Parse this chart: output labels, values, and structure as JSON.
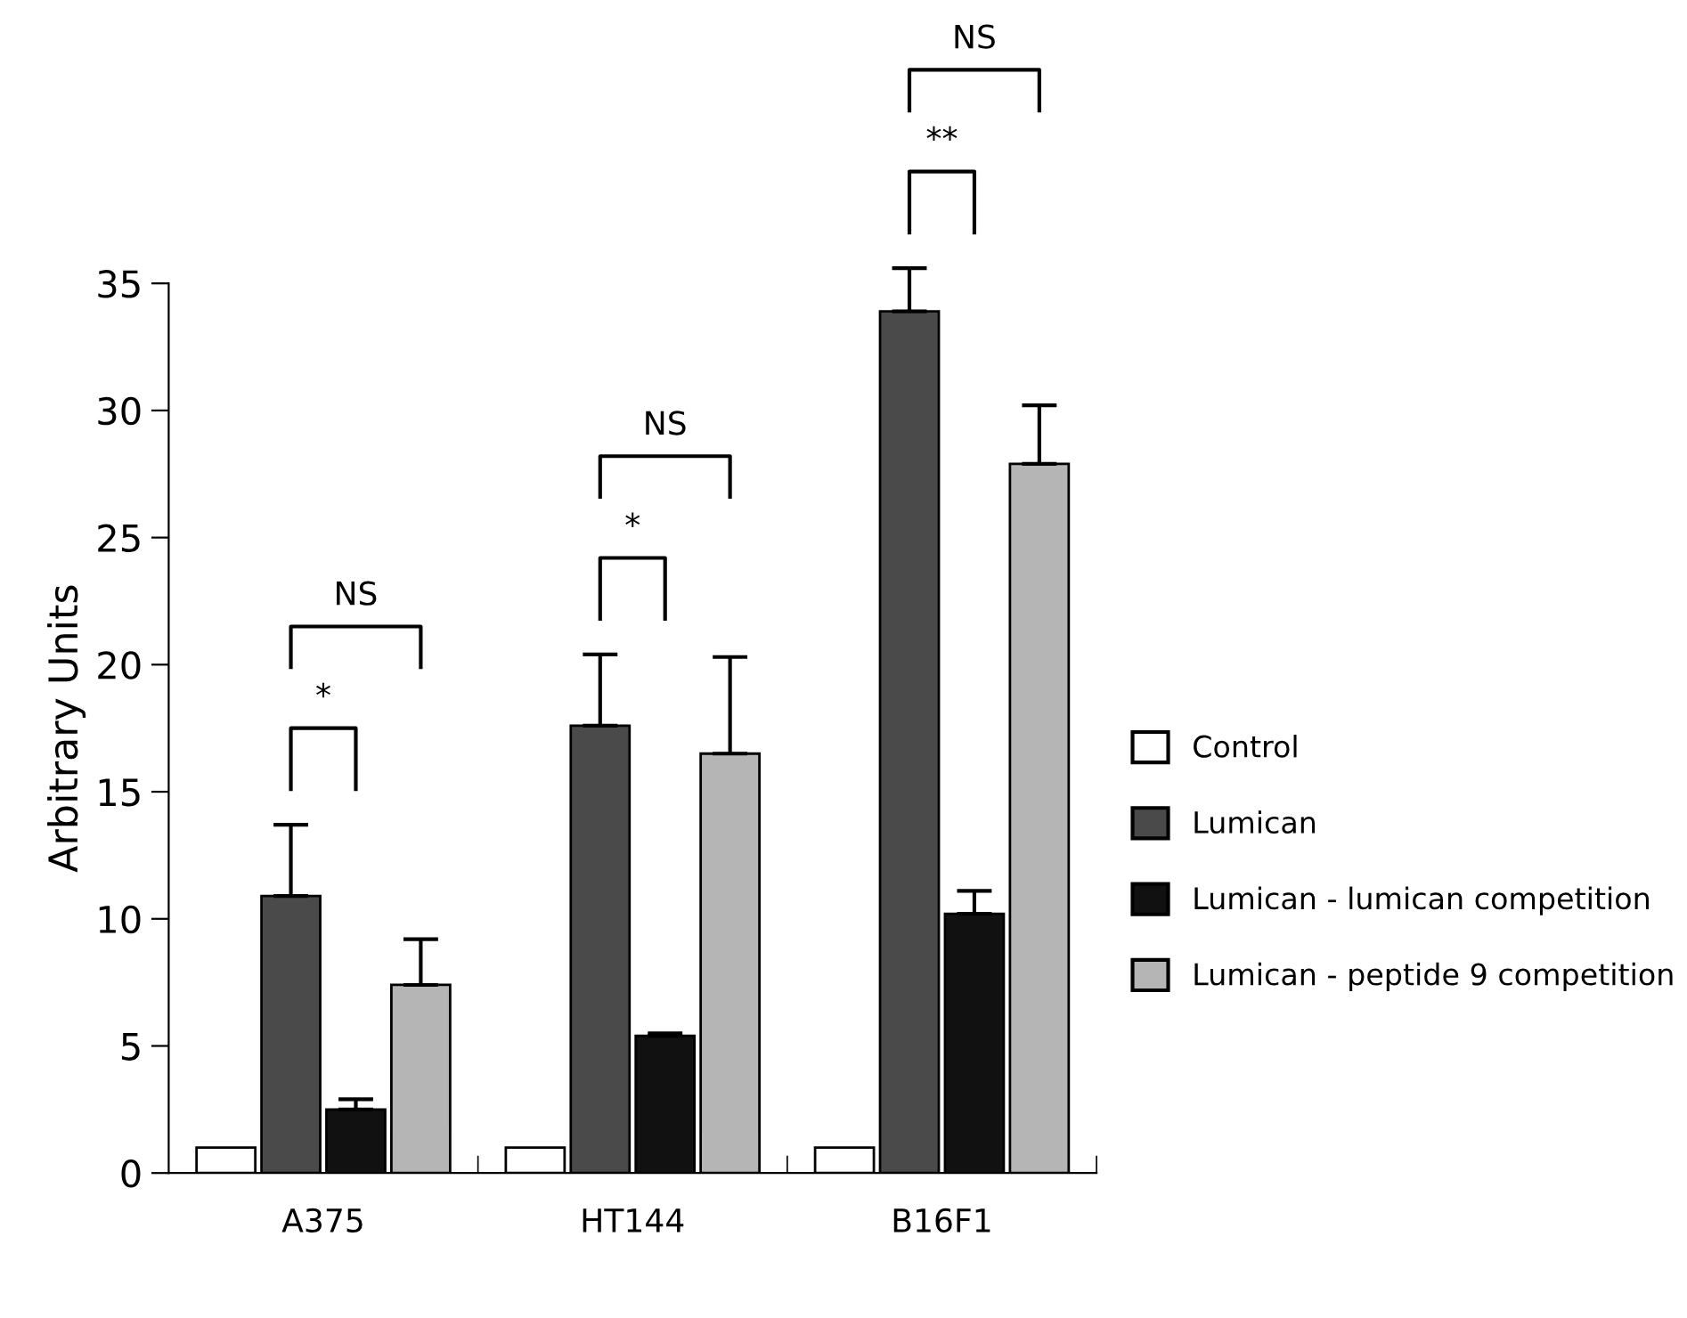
{
  "chart_data": {
    "type": "bar",
    "ylabel": "Arbitrary Units",
    "categories": [
      "A375",
      "HT144",
      "B16F1"
    ],
    "series": [
      {
        "name": "Control",
        "color": "#ffffff",
        "values": [
          1,
          1,
          1
        ],
        "errors": [
          null,
          null,
          null
        ]
      },
      {
        "name": "Lumican",
        "color": "#4a4a4a",
        "values": [
          10.9,
          17.6,
          33.9
        ],
        "errors": [
          [
            10.9,
            13.7
          ],
          [
            17.6,
            20.4
          ],
          [
            33.9,
            35.6
          ]
        ]
      },
      {
        "name": "Lumican - lumican competition",
        "color": "#111111",
        "values": [
          2.5,
          5.4,
          10.2
        ],
        "errors": [
          [
            2.5,
            2.9
          ],
          [
            5.4,
            5.5
          ],
          [
            10.2,
            11.1
          ]
        ]
      },
      {
        "name": "Lumican - peptide 9 competition",
        "color": "#b5b5b5",
        "values": [
          7.4,
          16.5,
          27.9
        ],
        "errors": [
          [
            7.4,
            9.2
          ],
          [
            16.5,
            20.3
          ],
          [
            27.9,
            30.2
          ]
        ]
      }
    ],
    "annotations": [
      "NS",
      "*",
      "NS",
      "*",
      "NS",
      "**"
    ],
    "ylim": [
      0,
      35
    ],
    "yticks": [
      0,
      5,
      10,
      15,
      20,
      25,
      30,
      35
    ],
    "legend": "right",
    "grid": false
  }
}
